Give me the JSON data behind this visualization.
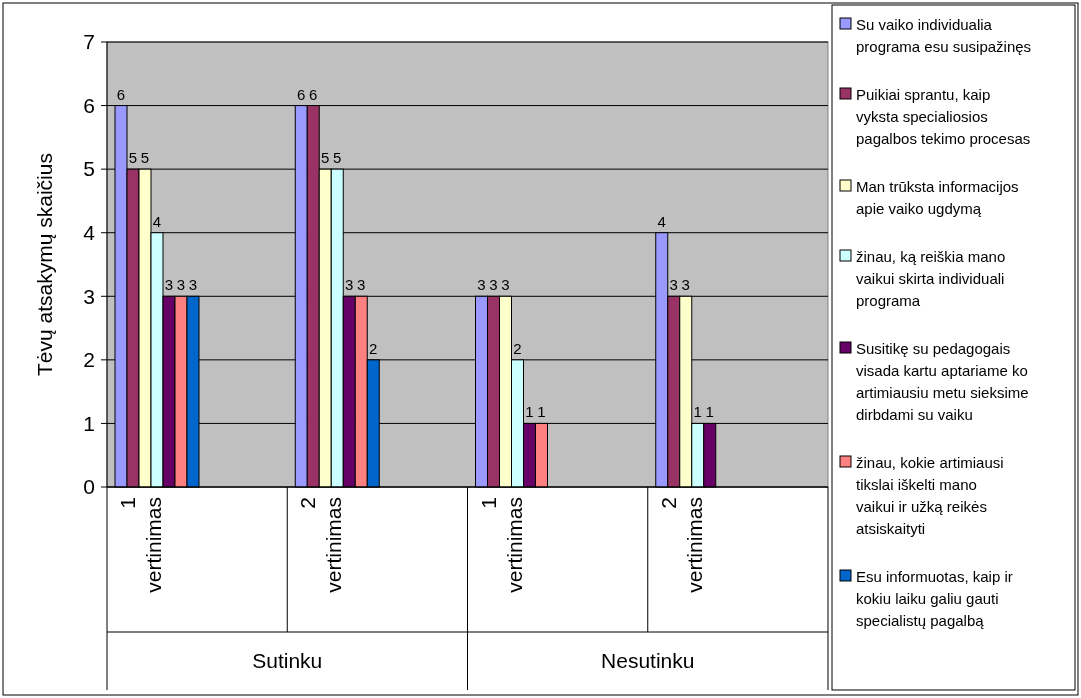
{
  "chart_data": {
    "type": "bar",
    "ylabel": "Tėvų atsakymų skaičius",
    "categories": [
      "1 vertinimas",
      "2 vertinimas",
      "1 vertinimas",
      "2 vertinimas"
    ],
    "annotations": [
      "Sutinku",
      "Nesutinku"
    ],
    "series": [
      {
        "name": "Su vaiko individualia programa esu susipažinęs",
        "color": "#9999ff",
        "values": [
          6,
          6,
          3,
          4
        ]
      },
      {
        "name": "Puikiai sprantu, kaip vyksta specialiosios pagalbos tekimo procesas",
        "color": "#993366",
        "values": [
          5,
          6,
          3,
          3
        ]
      },
      {
        "name": "Man trūksta informacijos apie vaiko ugdymą",
        "color": "#ffffcc",
        "values": [
          5,
          5,
          3,
          3
        ]
      },
      {
        "name": "žinau, ką reiškia mano vaikui skirta individuali programa",
        "color": "#ccffff",
        "values": [
          4,
          5,
          2,
          1
        ]
      },
      {
        "name": "Susitikę su pedagogais visada kartu aptariame ko artimiausiu metu sieksime dirbdami su vaiku",
        "color": "#660066",
        "values": [
          3,
          3,
          1,
          1
        ]
      },
      {
        "name": "žinau, kokie artimiausi tikslai iškelti mano vaikui ir užką reikės atsiskaityti",
        "color": "#ff8080",
        "values": [
          3,
          3,
          1,
          null
        ]
      },
      {
        "name": "Esu informuotas, kaip ir kokiu laiku galiu gauti specialistų pagalbą",
        "color": "#0066cc",
        "values": [
          3,
          2,
          null,
          null
        ]
      }
    ],
    "ylim": [
      0,
      7
    ],
    "yticks": [
      0,
      1,
      2,
      3,
      4,
      5,
      6,
      7
    ],
    "grid": "y",
    "legend": "right",
    "data_labels": true
  }
}
